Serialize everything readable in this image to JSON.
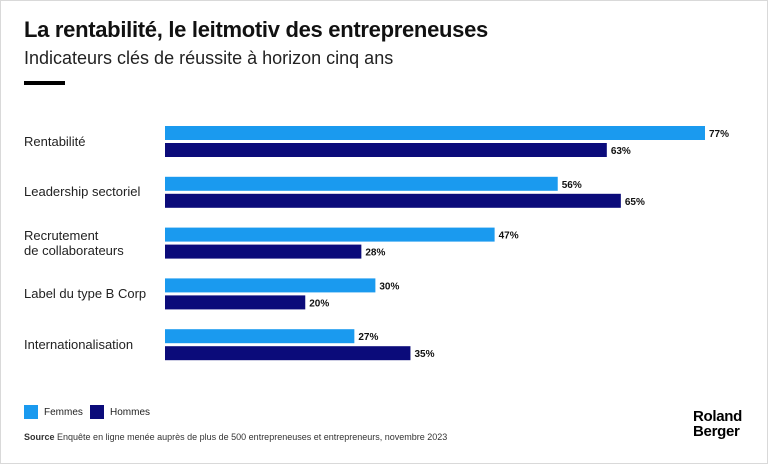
{
  "header": {
    "title": "La rentabilité, le leitmotiv des entrepreneuses",
    "subtitle": "Indicateurs clés de réussite à horizon cinq ans"
  },
  "chart_data": {
    "type": "bar",
    "orientation": "horizontal",
    "categories": [
      "Rentabilité",
      "Leadership sectoriel",
      "Recrutement\nde collaborateurs",
      "Label du type B Corp",
      "Internationalisation"
    ],
    "series": [
      {
        "name": "Femmes",
        "values": [
          77,
          56,
          47,
          30,
          27
        ],
        "labels": [
          "77%",
          "56%",
          "47%",
          "30%",
          "27%"
        ],
        "color": "#1a9aef"
      },
      {
        "name": "Hommes",
        "values": [
          63,
          65,
          28,
          20,
          35
        ],
        "labels": [
          "63%",
          "65%",
          "28%",
          "20%",
          "35%"
        ],
        "color": "#0b0b7a"
      }
    ],
    "xlim": [
      0,
      77
    ],
    "grid": false,
    "legend_position": "bottom-left"
  },
  "legend": {
    "femmes": "Femmes",
    "hommes": "Hommes"
  },
  "footer": {
    "source_label": "Source",
    "source_text": "Enquête en ligne menée auprès de plus de 500 entrepreneuses et entrepreneurs, novembre 2023",
    "brand_line1": "Roland",
    "brand_line2": "Berger"
  }
}
